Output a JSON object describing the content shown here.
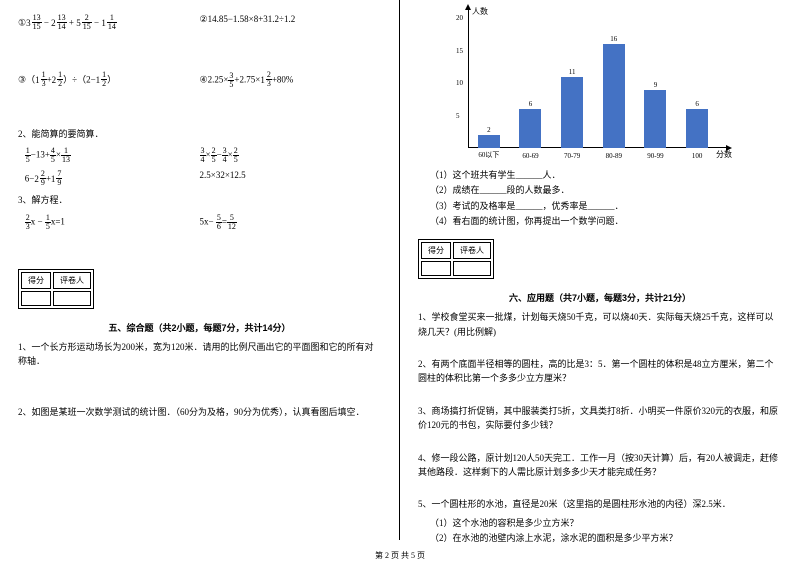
{
  "left": {
    "expr1_a": "①3(13/15) − 2(13/14) + 5(2/15) − 1(1/14)",
    "expr1_b": "②14.85−1.58×8+31.2÷1.2",
    "expr1_c": "③（1(1/3)+2(1/2)）÷（2−1(1/2)）",
    "expr1_d": "④2.25×(3/5)+2.75×1(2/3)+80%",
    "q2_title": "2、能简算的要简算．",
    "q2_a": "(1/5)−13+(4/5)×(1/13)",
    "q2_b": "(3/4)×(2/5)−(3/4)×(2/5)",
    "q2_c": "6−2(2/9)+1(7/9)",
    "q2_d": "2.5×32×12.5",
    "q3_title": "3、解方程．",
    "q3_a": "(2/3)x − (1/5)x=1",
    "q3_b": "5x− (5/6)=(5/12)",
    "score_a": "得分",
    "score_b": "评卷人",
    "sec5_title": "五、综合题（共2小题，每题7分，共计14分）",
    "sec5_q1": "1、一个长方形运动场长为200米，宽为120米．请用的比例尺画出它的平面图和它的所有对称轴．",
    "sec5_q2": "2、如图是某班一次数学测试的统计图．（60分为及格，90分为优秀），认真看图后填空．"
  },
  "right": {
    "chart": {
      "ylabel": "人数",
      "xlabel": "分数",
      "ymax": 20,
      "ytick_step": 5,
      "categories": [
        "60以下",
        "60-69",
        "70-79",
        "80-89",
        "90-99",
        "100"
      ],
      "values": [
        2,
        6,
        11,
        16,
        9,
        6
      ],
      "bar_color": "#4472c4",
      "value_fontsize": 7,
      "category_fontsize": 7
    },
    "sub1": "（1）这个班共有学生______人．",
    "sub2": "（2）成绩在______段的人数最多．",
    "sub3": "（3）考试的及格率是______，优秀率是______．",
    "sub4": "（4）看右面的统计图，你再提出一个数学问题．",
    "score_a": "得分",
    "score_b": "评卷人",
    "sec6_title": "六、应用题（共7小题，每题3分，共计21分）",
    "q1": "1、学校食堂买来一批煤，计划每天烧50千克，可以烧40天．实际每天烧25千克，这样可以烧几天？(用比例解)",
    "q2": "2、有两个底面半径相等的圆柱，高的比是3：5．第一个圆柱的体积是48立方厘米，第二个圆柱的体积比第一个多多少立方厘米？",
    "q3": "3、商场搞打折促销，其中服装类打5折，文具类打8折．小明买一件原价320元的衣服，和原价120元的书包，实际要付多少钱？",
    "q4": "4、修一段公路，原计划120人50天完工．工作一月（按30天计算）后，有20人被调走，赶修其他路段．这样剩下的人需比原计划多多少天才能完成任务？",
    "q5": "5、一个圆柱形的水池，直径是20米（这里指的是圆柱形水池的内径）深2.5米．",
    "q5a": "（1）这个水池的容积是多少立方米？",
    "q5b": "（2）在水池的池壁内涂上水泥，涂水泥的面积是多少平方米？"
  },
  "footer": "第 2 页 共 5 页"
}
